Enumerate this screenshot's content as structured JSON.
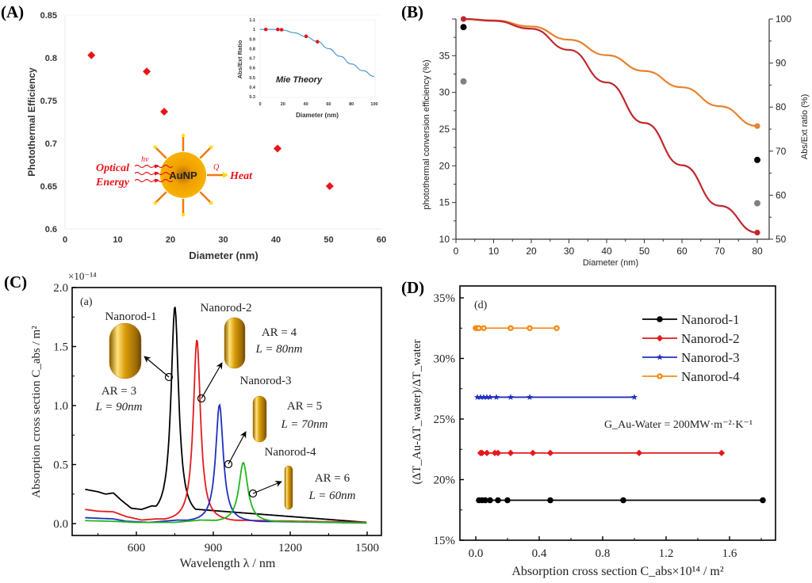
{
  "panel_labels": {
    "a": "(A)",
    "b": "(B)",
    "c": "(C)",
    "d": "(D)"
  },
  "chart_data": [
    {
      "id": "A",
      "type": "scatter",
      "title": "",
      "xlabel": "Diameter (nm)",
      "ylabel": "Photothermal Efficiency",
      "xlim": [
        0,
        60
      ],
      "ylim": [
        0.6,
        0.85
      ],
      "xticks": [
        "0",
        "10",
        "20",
        "30",
        "40",
        "50",
        "60"
      ],
      "yticks": [
        "0.6",
        "0.65",
        "0.7",
        "0.75",
        "0.8",
        "0.85"
      ],
      "marker_color": "#e8141a",
      "points": [
        {
          "x": 5,
          "y": 0.803
        },
        {
          "x": 15.5,
          "y": 0.784
        },
        {
          "x": 18.8,
          "y": 0.737
        },
        {
          "x": 40.3,
          "y": 0.694
        },
        {
          "x": 50.2,
          "y": 0.65
        }
      ],
      "illustration": {
        "center_label": "AuNP",
        "left_label_1": "Optical",
        "left_label_2": "Energy",
        "photon_label": "hv",
        "heat_symbol": "Q",
        "right_label": "Heat"
      },
      "inset": {
        "type": "line",
        "annotation": "Mie Theory",
        "xlabel": "Diameter (nm)",
        "ylabel": "Abs/Ext Ratio",
        "xlim": [
          0,
          100
        ],
        "ylim": [
          0.3,
          1.1
        ],
        "xticks": [
          "0",
          "20",
          "40",
          "60",
          "80",
          "100"
        ],
        "yticks": [
          "0.3",
          "0.4",
          "0.5",
          "0.6",
          "0.7",
          "0.8",
          "0.9",
          "1",
          "1.1"
        ],
        "line_color": "#4a9ad6",
        "curve": [
          [
            0,
            1.0
          ],
          [
            10,
            1.0
          ],
          [
            20,
            0.993
          ],
          [
            30,
            0.965
          ],
          [
            40,
            0.925
          ],
          [
            50,
            0.875
          ],
          [
            60,
            0.8
          ],
          [
            70,
            0.72
          ],
          [
            80,
            0.64
          ],
          [
            90,
            0.57
          ],
          [
            100,
            0.51
          ]
        ],
        "points": [
          [
            5,
            1.0
          ],
          [
            15.5,
            1.0
          ],
          [
            18.8,
            0.997
          ],
          [
            40.3,
            0.928
          ],
          [
            50.2,
            0.872
          ]
        ]
      }
    },
    {
      "id": "B",
      "type": "line",
      "xlabel": "Diameter (nm)",
      "ylabel_left": "photothermal conversion efficiency (%)",
      "ylabel_right": "Abs/Ext ratio (%)",
      "xlim": [
        0,
        84
      ],
      "ylim_left": [
        10,
        40
      ],
      "ylim_right": [
        50,
        100
      ],
      "xticks": [
        "0",
        "10",
        "20",
        "30",
        "40",
        "50",
        "60",
        "70",
        "80"
      ],
      "yticks_left": [
        "10",
        "15",
        "20",
        "25",
        "30",
        "35"
      ],
      "yticks_right": [
        "50",
        "60",
        "70",
        "80",
        "90",
        "100"
      ],
      "series": [
        {
          "name": "Abs/Ext ratio (orange)",
          "axis": "right",
          "color": "#e8822e",
          "x": [
            2,
            10,
            20,
            30,
            40,
            50,
            60,
            70,
            80
          ],
          "values": [
            100,
            99.7,
            98.3,
            95.3,
            91.8,
            88.2,
            84.5,
            80.2,
            75.7
          ]
        },
        {
          "name": "Abs/Ext ratio (red)",
          "axis": "right",
          "color": "#c0282e",
          "x": [
            2,
            10,
            20,
            30,
            40,
            50,
            60,
            70,
            80
          ],
          "values": [
            100,
            99.6,
            97.8,
            93.0,
            85.6,
            76.4,
            66.8,
            57.6,
            51.5
          ]
        }
      ],
      "scatter": [
        {
          "name": "black",
          "axis": "left",
          "color": "#000000",
          "points": [
            [
              2,
              38.9
            ],
            [
              80,
              20.8
            ]
          ]
        },
        {
          "name": "gray",
          "axis": "left",
          "color": "#808080",
          "points": [
            [
              2,
              31.5
            ],
            [
              80,
              14.9
            ]
          ]
        }
      ]
    },
    {
      "id": "C",
      "type": "line",
      "subpanel": "(a)",
      "xlabel": "Wavelength λ / nm",
      "ylabel": "Absorption cross section C_abs / m²",
      "scale_label": "×10⁻¹⁴",
      "xlim": [
        360,
        1520
      ],
      "ylim": [
        -0.1,
        2.0
      ],
      "xticks": [
        "600",
        "900",
        "1200",
        "1500"
      ],
      "yticks": [
        "0.0",
        "0.5",
        "1.0",
        "1.5",
        "2.0"
      ],
      "series": [
        {
          "name": "Nanorod-1",
          "color": "#000000",
          "peak": 750,
          "peak_value": 1.8,
          "width": 36,
          "base": [
            [
              400,
              0.29
            ],
            [
              450,
              0.27
            ],
            [
              480,
              0.25
            ],
            [
              510,
              0.26
            ],
            [
              540,
              0.2
            ],
            [
              580,
              0.13
            ],
            [
              620,
              0.12
            ],
            [
              660,
              0.15
            ]
          ],
          "tail_end": 0.01
        },
        {
          "name": "Nanorod-2",
          "color": "#e31a1c",
          "peak": 836,
          "peak_value": 1.55,
          "width": 34,
          "base": [
            [
              400,
              0.12
            ],
            [
              450,
              0.105
            ],
            [
              510,
              0.1
            ],
            [
              560,
              0.06
            ],
            [
              620,
              0.03
            ],
            [
              680,
              0.04
            ]
          ],
          "tail_end": 0.01
        },
        {
          "name": "Nanorod-3",
          "color": "#1f2fbf",
          "peak": 924,
          "peak_value": 1.0,
          "width": 36,
          "base": [
            [
              400,
              0.05
            ],
            [
              450,
              0.045
            ],
            [
              510,
              0.04
            ],
            [
              560,
              0.02
            ],
            [
              650,
              0.01
            ],
            [
              760,
              0.03
            ]
          ],
          "tail_end": 0.005
        },
        {
          "name": "Nanorod-4",
          "color": "#22b522",
          "peak": 1017,
          "peak_value": 0.51,
          "width": 42,
          "base": [
            [
              400,
              0.025
            ],
            [
              500,
              0.02
            ],
            [
              600,
              0.01
            ],
            [
              750,
              0.01
            ],
            [
              850,
              0.03
            ]
          ],
          "tail_end": 0.005
        }
      ],
      "annotations": [
        {
          "title": "Nanorod-1",
          "ar": "AR = 3",
          "len": "L = 90nm"
        },
        {
          "title": "Nanorod-2",
          "ar": "AR = 4",
          "len": "L = 80nm"
        },
        {
          "title": "Nanorod-3",
          "ar": "AR = 5",
          "len": "L = 70nm"
        },
        {
          "title": "Nanorod-4",
          "ar": "AR = 6",
          "len": "L = 60nm"
        }
      ]
    },
    {
      "id": "D",
      "type": "line",
      "subpanel": "(d)",
      "xlabel": "Absorption cross section C_abs×10¹⁴ / m²",
      "ylabel": "(ΔT_Au-ΔT_water)/ΔT_water",
      "xlim": [
        -0.1,
        1.9
      ],
      "ylim": [
        15,
        36
      ],
      "xticks": [
        "0.0",
        "0.4",
        "0.8",
        "1.2",
        "1.6"
      ],
      "yticks": [
        "15%",
        "20%",
        "25%",
        "30%",
        "35%"
      ],
      "annotation": "G_Au-Water = 200MW·m⁻²·K⁻¹",
      "legend_position": "top-right",
      "series": [
        {
          "name": "Nanorod-1",
          "color": "#000000",
          "marker": "circle",
          "y": 18.3,
          "x": [
            0.02,
            0.04,
            0.06,
            0.09,
            0.14,
            0.2,
            0.47,
            0.93,
            1.81
          ]
        },
        {
          "name": "Nanorod-2",
          "color": "#e31a1c",
          "marker": "diamond",
          "y": 22.2,
          "x": [
            0.03,
            0.04,
            0.07,
            0.12,
            0.14,
            0.22,
            0.36,
            0.47,
            1.03,
            1.55
          ]
        },
        {
          "name": "Nanorod-3",
          "color": "#1f2fbf",
          "marker": "star",
          "y": 26.8,
          "x": [
            0.01,
            0.03,
            0.05,
            0.07,
            0.09,
            0.13,
            0.22,
            0.34,
            1.0
          ]
        },
        {
          "name": "Nanorod-4",
          "color": "#f28e1c",
          "marker": "open-circle",
          "y": 32.5,
          "x": [
            0.0,
            0.01,
            0.02,
            0.05,
            0.22,
            0.34,
            0.51
          ]
        }
      ]
    }
  ]
}
